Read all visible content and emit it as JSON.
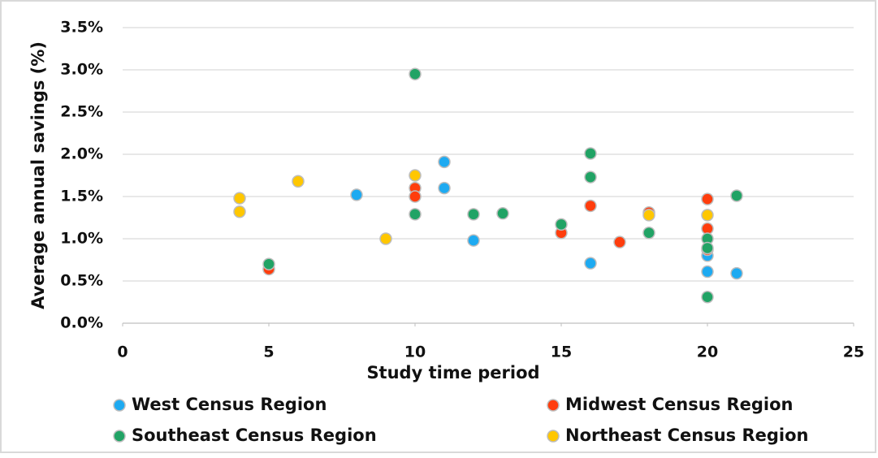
{
  "chart_data": {
    "type": "scatter",
    "x_label": "Study time period",
    "y_label": "Average annual  savings (%)",
    "xlim": [
      0,
      25
    ],
    "xticks": [
      0,
      5,
      10,
      15,
      20,
      25
    ],
    "ylim": [
      0,
      3.5
    ],
    "yticks": [
      {
        "value": 0,
        "label": "0.0%"
      },
      {
        "value": 0.5,
        "label": "0.5%"
      },
      {
        "value": 1,
        "label": "1.0%"
      },
      {
        "value": 1.5,
        "label": "1.5%"
      },
      {
        "value": 2,
        "label": "2.0%"
      },
      {
        "value": 2.5,
        "label": "2.5%"
      },
      {
        "value": 3,
        "label": "3.0%"
      },
      {
        "value": 3.5,
        "label": "3.5%"
      }
    ],
    "grid": true,
    "series": [
      {
        "name": "West Census Region",
        "color": "#1eaaf1",
        "x": [
          8,
          11,
          11,
          12,
          16,
          20,
          20,
          21
        ],
        "values": [
          1.52,
          1.91,
          1.6,
          0.98,
          0.71,
          0.8,
          0.61,
          0.59
        ]
      },
      {
        "name": "Midwest Census Region",
        "color": "#ff3d0d",
        "x": [
          5,
          10,
          10,
          15,
          16,
          17,
          18,
          20,
          20,
          20
        ],
        "values": [
          0.64,
          1.6,
          1.5,
          1.07,
          1.39,
          0.96,
          1.31,
          1.47,
          1.12,
          0.87
        ]
      },
      {
        "name": "Southeast Census Region",
        "color": "#21a365",
        "x": [
          5,
          10,
          10,
          12,
          13,
          15,
          16,
          16,
          18,
          20,
          20,
          20,
          21
        ],
        "values": [
          0.7,
          2.95,
          1.29,
          1.29,
          1.3,
          1.17,
          2.01,
          1.73,
          1.07,
          1.0,
          0.89,
          0.31,
          1.51
        ]
      },
      {
        "name": "Northeast Census Region",
        "color": "#ffc700",
        "x": [
          4,
          4,
          6,
          9,
          10,
          18,
          20
        ],
        "values": [
          1.48,
          1.32,
          1.68,
          1.0,
          1.75,
          1.28,
          1.28
        ]
      }
    ]
  }
}
